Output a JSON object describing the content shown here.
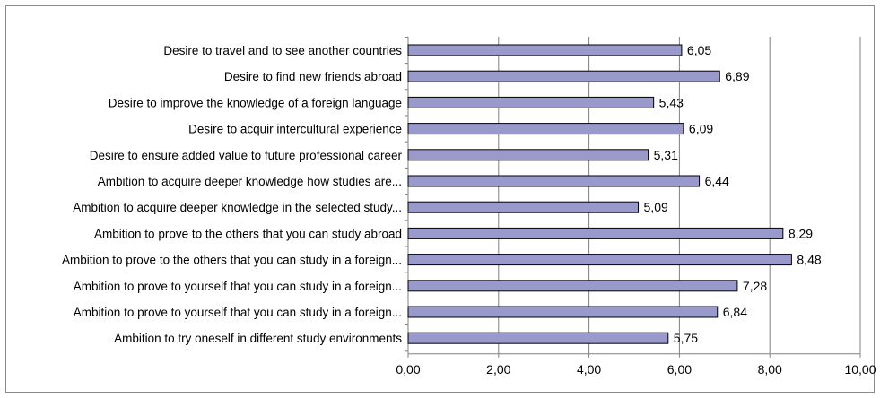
{
  "chart_data": {
    "type": "bar",
    "orientation": "horizontal",
    "categories": [
      "Desire to travel and to see another countries",
      "Desire to find new friends abroad",
      "Desire to improve the knowledge of a foreign language",
      "Desire to acquir intercultural experience",
      "Desire to ensure added value to future professional career",
      "Ambition to acquire deeper knowledge how studies are...",
      "Ambition to acquire deeper knowledge in the selected study...",
      "Ambition to prove to the others that you can study abroad",
      "Ambition to prove to the others that you can study in a foreign...",
      "Ambition to prove to yourself that you can study in a foreign...",
      "Ambition to prove to yourself that you can study in a foreign...",
      "Ambition to try oneself in different study environments"
    ],
    "values": [
      6.05,
      6.89,
      5.43,
      6.09,
      5.31,
      6.44,
      5.09,
      8.29,
      8.48,
      7.28,
      6.84,
      5.75
    ],
    "value_labels": [
      "6,05",
      "6,89",
      "5,43",
      "6,09",
      "5,31",
      "6,44",
      "5,09",
      "8,29",
      "8,48",
      "7,28",
      "6,84",
      "5,75"
    ],
    "xlim": [
      0,
      10
    ],
    "x_ticks": [
      0,
      2,
      4,
      6,
      8,
      10
    ],
    "x_tick_labels": [
      "0,00",
      "2,00",
      "4,00",
      "6,00",
      "8,00",
      "10,00"
    ],
    "title": "",
    "xlabel": "",
    "ylabel": "",
    "grid": true,
    "legend": "none",
    "bar_color": "#9999cc",
    "bar_edge_color": "#000000",
    "grid_color": "#808080"
  }
}
